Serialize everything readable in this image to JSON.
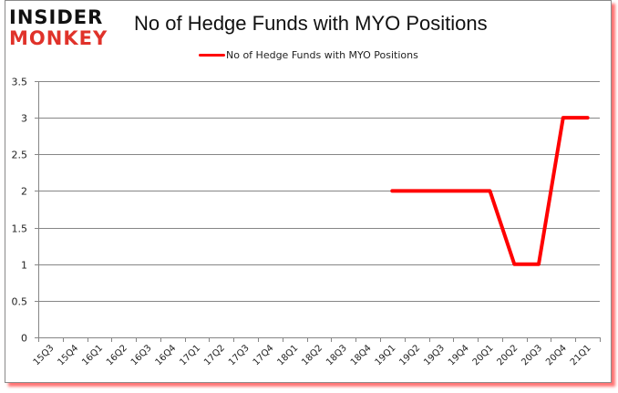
{
  "logo": {
    "top": "INSIDER",
    "bottom": "MONKEY"
  },
  "title": "No of Hedge Funds with MYO Positions",
  "legend": {
    "label": "No of Hedge Funds with MYO Positions",
    "color": "#ff0000"
  },
  "chart_data": {
    "type": "line",
    "title": "No of Hedge Funds with MYO Positions",
    "xlabel": "",
    "ylabel": "",
    "ylim": [
      0,
      3.5
    ],
    "yticks": [
      "0",
      "0.5",
      "1",
      "1.5",
      "2",
      "2.5",
      "3",
      "3.5"
    ],
    "grid": true,
    "legend_position": "top",
    "categories": [
      "15Q3",
      "15Q4",
      "16Q1",
      "16Q2",
      "16Q3",
      "16Q4",
      "17Q1",
      "17Q2",
      "17Q3",
      "17Q4",
      "18Q1",
      "18Q2",
      "18Q3",
      "18Q4",
      "19Q1",
      "19Q2",
      "19Q3",
      "19Q4",
      "20Q1",
      "20Q2",
      "20Q3",
      "20Q4",
      "21Q1"
    ],
    "series": [
      {
        "name": "No of Hedge Funds with MYO Positions",
        "color": "#ff0000",
        "values": [
          null,
          null,
          null,
          null,
          null,
          null,
          null,
          null,
          null,
          null,
          null,
          null,
          null,
          null,
          2,
          2,
          2,
          2,
          2,
          1,
          1,
          3,
          3
        ]
      }
    ]
  }
}
